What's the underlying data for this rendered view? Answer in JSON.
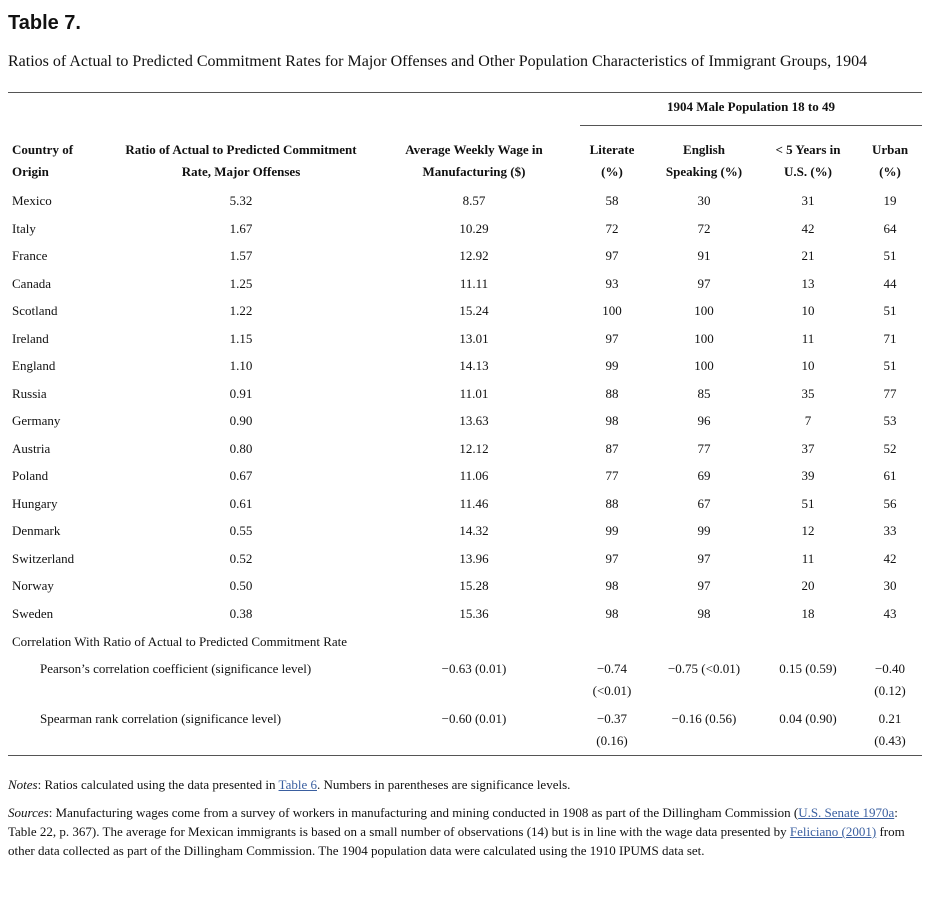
{
  "title": "Table 7.",
  "caption": "Ratios of Actual to Predicted Commitment Rates for Major Offenses and Other Population Characteristics of Immigrant Groups, 1904",
  "table": {
    "group_header": "1904 Male Population 18 to 49",
    "columns": [
      [
        "Country of",
        "Origin"
      ],
      [
        "Ratio of Actual to Predicted Commitment",
        "Rate, Major Offenses"
      ],
      [
        "Average Weekly Wage in",
        "Manufacturing ($)"
      ],
      [
        "Literate",
        "(%)"
      ],
      [
        "English",
        "Speaking (%)"
      ],
      [
        "< 5 Years in",
        "U.S. (%)"
      ],
      [
        "Urban",
        "(%)"
      ]
    ],
    "rows": [
      [
        "Mexico",
        "5.32",
        "8.57",
        "58",
        "30",
        "31",
        "19"
      ],
      [
        "Italy",
        "1.67",
        "10.29",
        "72",
        "72",
        "42",
        "64"
      ],
      [
        "France",
        "1.57",
        "12.92",
        "97",
        "91",
        "21",
        "51"
      ],
      [
        "Canada",
        "1.25",
        "11.11",
        "93",
        "97",
        "13",
        "44"
      ],
      [
        "Scotland",
        "1.22",
        "15.24",
        "100",
        "100",
        "10",
        "51"
      ],
      [
        "Ireland",
        "1.15",
        "13.01",
        "97",
        "100",
        "11",
        "71"
      ],
      [
        "England",
        "1.10",
        "14.13",
        "99",
        "100",
        "10",
        "51"
      ],
      [
        "Russia",
        "0.91",
        "11.01",
        "88",
        "85",
        "35",
        "77"
      ],
      [
        "Germany",
        "0.90",
        "13.63",
        "98",
        "96",
        "7",
        "53"
      ],
      [
        "Austria",
        "0.80",
        "12.12",
        "87",
        "77",
        "37",
        "52"
      ],
      [
        "Poland",
        "0.67",
        "11.06",
        "77",
        "69",
        "39",
        "61"
      ],
      [
        "Hungary",
        "0.61",
        "11.46",
        "88",
        "67",
        "51",
        "56"
      ],
      [
        "Denmark",
        "0.55",
        "14.32",
        "99",
        "99",
        "12",
        "33"
      ],
      [
        "Switzerland",
        "0.52",
        "13.96",
        "97",
        "97",
        "11",
        "42"
      ],
      [
        "Norway",
        "0.50",
        "15.28",
        "98",
        "97",
        "20",
        "30"
      ],
      [
        "Sweden",
        "0.38",
        "15.36",
        "98",
        "98",
        "18",
        "43"
      ]
    ],
    "correlation": {
      "label": "Correlation With Ratio of Actual to Predicted Commitment Rate",
      "rows": [
        [
          "Pearson’s correlation coefficient (significance level)",
          "−0.63 (0.01)",
          "−0.74 (<0.01)",
          "−0.75 (<0.01)",
          "0.15 (0.59)",
          "−0.40 (0.12)"
        ],
        [
          "Spearman rank correlation (significance level)",
          "−0.60 (0.01)",
          "−0.37 (0.16)",
          "−0.16 (0.56)",
          "0.04 (0.90)",
          "0.21 (0.43)"
        ]
      ]
    }
  },
  "notes": [
    {
      "text": "Notes",
      "style": "italic"
    },
    {
      "text": ": Ratios calculated using the data presented in "
    },
    {
      "text": "Table 6",
      "style": "link"
    },
    {
      "text": ". Numbers in parentheses are significance levels."
    }
  ],
  "sources": [
    {
      "text": "Sources",
      "style": "italic"
    },
    {
      "text": ": Manufacturing wages come from a survey of workers in manufacturing and mining conducted in 1908 as part of the Dillingham Commission ("
    },
    {
      "text": "U.S. Senate 1970a",
      "style": "link"
    },
    {
      "text": ": Table 22, p. 367). The average for Mexican immigrants is based on a small number of observations (14) but is in line with the wage data presented by "
    },
    {
      "text": "Feliciano (2001)",
      "style": "link"
    },
    {
      "text": " from other data collected as part of the Dillingham Commission. The 1904 population data were calculated using the 1910 IPUMS data set."
    }
  ]
}
